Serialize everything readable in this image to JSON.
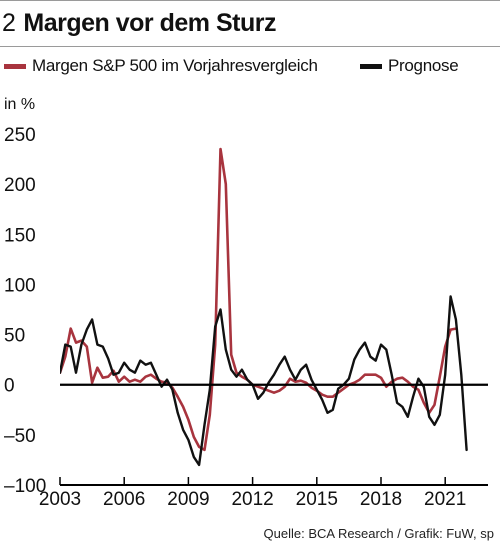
{
  "header": {
    "number": "2",
    "title": "Margen vor dem Sturz"
  },
  "legend": [
    {
      "label": "Margen S&P 500 im Vorjahresvergleich",
      "color": "#a8343e"
    },
    {
      "label": "Prognose",
      "color": "#111111"
    }
  ],
  "source": "Quelle: BCA Research / Grafik: FuW, sp",
  "chart_data": {
    "type": "line",
    "ylabel": "in %",
    "ylim": [
      -100,
      250
    ],
    "yticks": [
      250,
      200,
      150,
      100,
      50,
      0,
      -50,
      -100
    ],
    "xlim": [
      2003,
      2023
    ],
    "xticks": [
      2003,
      2006,
      2009,
      2012,
      2015,
      2018,
      2021
    ],
    "zero_line": true,
    "grid": false,
    "series": [
      {
        "name": "Margen S&P 500 im Vorjahresvergleich",
        "color": "#a8343e",
        "x": [
          2003.0,
          2003.25,
          2003.5,
          2003.75,
          2004.0,
          2004.25,
          2004.5,
          2004.75,
          2005.0,
          2005.25,
          2005.5,
          2005.75,
          2006.0,
          2006.25,
          2006.5,
          2006.75,
          2007.0,
          2007.25,
          2007.5,
          2007.75,
          2008.0,
          2008.25,
          2008.5,
          2008.75,
          2009.0,
          2009.25,
          2009.5,
          2009.75,
          2010.0,
          2010.25,
          2010.5,
          2010.75,
          2011.0,
          2011.25,
          2011.5,
          2011.75,
          2012.0,
          2012.25,
          2012.5,
          2012.75,
          2013.0,
          2013.25,
          2013.5,
          2013.75,
          2014.0,
          2014.25,
          2014.5,
          2014.75,
          2015.0,
          2015.25,
          2015.5,
          2015.75,
          2016.0,
          2016.25,
          2016.5,
          2016.75,
          2017.0,
          2017.25,
          2017.5,
          2017.75,
          2018.0,
          2018.25,
          2018.5,
          2018.75,
          2019.0,
          2019.25,
          2019.5,
          2019.75,
          2020.0,
          2020.25,
          2020.5,
          2020.75,
          2021.0,
          2021.25,
          2021.5
        ],
        "values": [
          12,
          28,
          56,
          42,
          44,
          38,
          2,
          17,
          7,
          8,
          14,
          3,
          8,
          3,
          5,
          3,
          8,
          10,
          6,
          3,
          2,
          -3,
          -12,
          -22,
          -35,
          -52,
          -62,
          -65,
          -30,
          40,
          235,
          200,
          30,
          12,
          8,
          5,
          0,
          -2,
          -4,
          -6,
          -8,
          -6,
          -2,
          6,
          3,
          4,
          2,
          -3,
          -6,
          -10,
          -12,
          -12,
          -8,
          -4,
          0,
          2,
          5,
          10,
          10,
          10,
          7,
          -2,
          3,
          6,
          7,
          3,
          -2,
          -5,
          -18,
          -28,
          -20,
          8,
          38,
          55,
          56
        ]
      },
      {
        "name": "Prognose",
        "color": "#111111",
        "x": [
          2003.0,
          2003.25,
          2003.5,
          2003.75,
          2004.0,
          2004.25,
          2004.5,
          2004.75,
          2005.0,
          2005.25,
          2005.5,
          2005.75,
          2006.0,
          2006.25,
          2006.5,
          2006.75,
          2007.0,
          2007.25,
          2007.5,
          2007.75,
          2008.0,
          2008.25,
          2008.5,
          2008.75,
          2009.0,
          2009.25,
          2009.5,
          2009.75,
          2010.0,
          2010.25,
          2010.5,
          2010.75,
          2011.0,
          2011.25,
          2011.5,
          2011.75,
          2012.0,
          2012.25,
          2012.5,
          2012.75,
          2013.0,
          2013.25,
          2013.5,
          2013.75,
          2014.0,
          2014.25,
          2014.5,
          2014.75,
          2015.0,
          2015.25,
          2015.5,
          2015.75,
          2016.0,
          2016.25,
          2016.5,
          2016.75,
          2017.0,
          2017.25,
          2017.5,
          2017.75,
          2018.0,
          2018.25,
          2018.5,
          2018.75,
          2019.0,
          2019.25,
          2019.5,
          2019.75,
          2020.0,
          2020.25,
          2020.5,
          2020.75,
          2021.0,
          2021.25,
          2021.5,
          2021.75,
          2022.0,
          2022.25
        ],
        "values": [
          12,
          40,
          38,
          12,
          40,
          55,
          65,
          40,
          38,
          26,
          10,
          12,
          22,
          15,
          12,
          24,
          20,
          22,
          10,
          -2,
          5,
          -5,
          -28,
          -45,
          -55,
          -72,
          -80,
          -40,
          -5,
          58,
          75,
          35,
          15,
          8,
          15,
          5,
          0,
          -14,
          -8,
          2,
          10,
          20,
          28,
          15,
          5,
          15,
          20,
          5,
          -5,
          -15,
          -28,
          -25,
          -4,
          0,
          6,
          25,
          35,
          42,
          28,
          24,
          40,
          35,
          10,
          -18,
          -22,
          -32,
          -12,
          6,
          -2,
          -32,
          -40,
          -30,
          10,
          88,
          65,
          10,
          -65,
          null
        ]
      }
    ]
  }
}
